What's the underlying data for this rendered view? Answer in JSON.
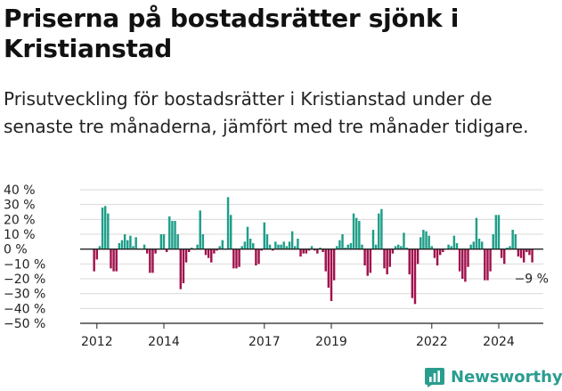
{
  "title": "Priserna på bostadsrätter sjönk i Kristianstad",
  "subtitle": "Prisutveckling för bostadsrätter i Kristianstad under de senaste tre månaderna, jämfört med tre månader tidigare.",
  "brand": {
    "name": "Newsworthy",
    "icon": "newsworthy-bar-chart-icon"
  },
  "colors": {
    "positive": "#1f9e89",
    "negative": "#a1124d",
    "grid": "#d9d9d9",
    "axis": "#222222",
    "brand": "#2a9d8f"
  },
  "chart_data": {
    "type": "bar",
    "title": "",
    "xlabel": "",
    "ylabel": "",
    "ylim": [
      -50,
      40
    ],
    "yticks": [
      40,
      30,
      20,
      10,
      0,
      -10,
      -20,
      -30,
      -40,
      -50
    ],
    "ytick_labels": [
      "40 %",
      "30 %",
      "20 %",
      "10 %",
      "0 %",
      "−10 %",
      "−20 %",
      "−30 %",
      "−40 %",
      "−50 %"
    ],
    "xlim": [
      2011.5,
      2025.33
    ],
    "xticks": [
      {
        "x": 2012.0,
        "label": "2012"
      },
      {
        "x": 2014.0,
        "label": "2014"
      },
      {
        "x": 2017.0,
        "label": "2017"
      },
      {
        "x": 2019.0,
        "label": "2019"
      },
      {
        "x": 2022.0,
        "label": "2022"
      },
      {
        "x": 2024.0,
        "label": "2024"
      }
    ],
    "grid": true,
    "start": "2011-12",
    "frequency": "monthly",
    "values": [
      -15,
      -7,
      2,
      28,
      29,
      24,
      -13,
      -15,
      -15,
      4,
      6,
      10,
      6,
      9,
      2,
      8,
      0,
      0,
      3,
      -3,
      -16,
      -16,
      -3,
      0,
      10,
      10,
      -2,
      22,
      19,
      19,
      10,
      -27,
      -23,
      -9,
      -2,
      1,
      0,
      3,
      26,
      10,
      -4,
      -6,
      -9,
      -3,
      -1,
      2,
      6,
      0,
      35,
      23,
      -13,
      -13,
      -12,
      2,
      5,
      15,
      7,
      4,
      -11,
      -10,
      -1,
      18,
      10,
      3,
      -1,
      5,
      3,
      3,
      5,
      2,
      5,
      12,
      2,
      7,
      -5,
      -3,
      -3,
      -1,
      2,
      -1,
      -3,
      1,
      -2,
      -15,
      -26,
      -35,
      -21,
      2,
      6,
      10,
      1,
      3,
      4,
      24,
      21,
      19,
      3,
      -11,
      -18,
      -16,
      13,
      3,
      24,
      27,
      -13,
      -17,
      -12,
      -3,
      2,
      3,
      2,
      11,
      1,
      -17,
      -33,
      -37,
      -10,
      8,
      13,
      12,
      9,
      2,
      -6,
      -11,
      -4,
      -2,
      0,
      3,
      2,
      9,
      4,
      -15,
      -20,
      -22,
      -12,
      3,
      5,
      21,
      7,
      5,
      -21,
      -21,
      -15,
      10,
      23,
      23,
      -6,
      -10,
      1,
      2,
      13,
      10,
      -5,
      -6,
      -9,
      -2,
      -4,
      -9
    ],
    "annotations": [
      {
        "label": "−9 %"
      }
    ]
  }
}
